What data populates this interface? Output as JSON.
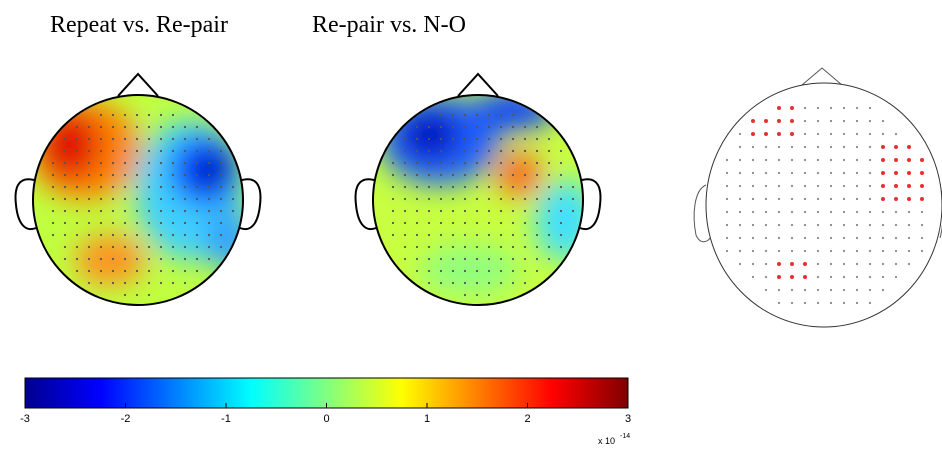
{
  "panels": [
    {
      "title": "Repeat vs. Re-pair"
    },
    {
      "title": "Re-pair vs. N-O"
    }
  ],
  "colorbar": {
    "lim": [
      -3,
      3
    ],
    "ticks": [
      -3,
      -2,
      -1,
      0,
      1,
      2,
      3
    ],
    "multiplier": {
      "base": "x 10",
      "exponent": "-14"
    }
  }
}
